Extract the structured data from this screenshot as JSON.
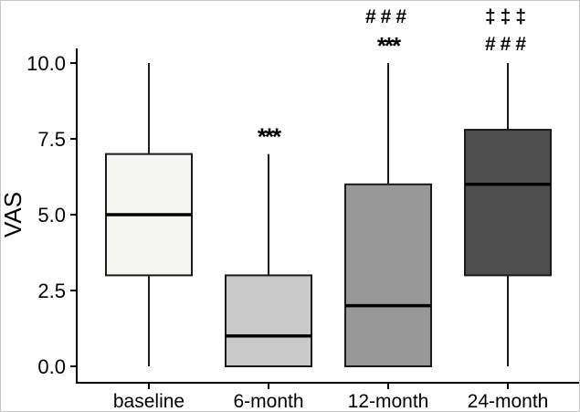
{
  "figure": {
    "background_color": "#ffffff",
    "frame_border_color": "#c6c6c6"
  },
  "chart_data": {
    "type": "boxplot",
    "title": "",
    "xlabel": "",
    "ylabel": "VAS",
    "ylim": [
      0,
      10
    ],
    "yticks": [
      0,
      2.5,
      5,
      7.5,
      10
    ],
    "ytick_labels": [
      "0.0",
      "2.5",
      "5.0",
      "7.5",
      "10.0"
    ],
    "categories": [
      "baseline",
      "6-month",
      "12-month",
      "24-month"
    ],
    "grid": false,
    "legend": false,
    "axis_color": "#000000",
    "box_border_color": "#1b1b1b",
    "median_color": "#000000",
    "text_color": "#000000",
    "boxes": [
      {
        "category": "baseline",
        "whisker_low": 0,
        "q1": 3,
        "median": 5,
        "q3": 7,
        "whisker_high": 10,
        "fill": "#f5f5f2",
        "annotations": []
      },
      {
        "category": "6-month",
        "whisker_low": 0,
        "q1": 0,
        "median": 1,
        "q3": 3,
        "whisker_high": 7,
        "fill": "#c9c9c9",
        "annotations": [
          "***"
        ]
      },
      {
        "category": "12-month",
        "whisker_low": 0,
        "q1": 0,
        "median": 2,
        "q3": 6,
        "whisker_high": 10,
        "fill": "#989898",
        "annotations": [
          "###",
          "***"
        ]
      },
      {
        "category": "24-month",
        "whisker_low": 0,
        "q1": 3,
        "median": 6,
        "q3": 7.8,
        "whisker_high": 10,
        "fill": "#4e4e4e",
        "annotations": [
          "‡‡‡",
          "###"
        ]
      }
    ]
  }
}
